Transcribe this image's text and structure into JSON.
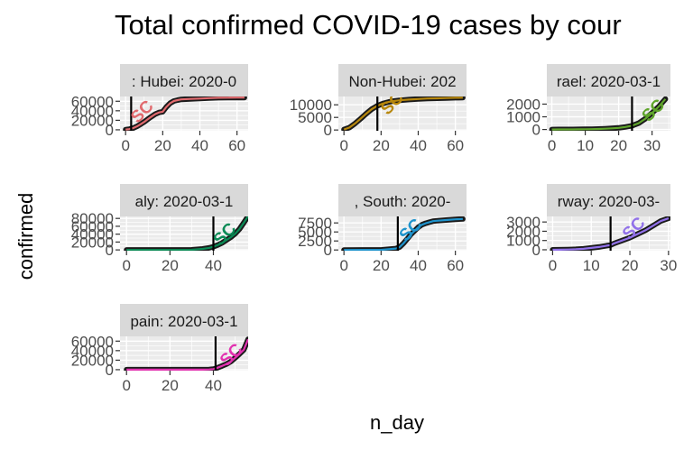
{
  "chart_data": {
    "type": "line",
    "title": "Total confirmed COVID-19 cases by cour",
    "xlabel": "n_day",
    "ylabel": "confirmed",
    "grid": true,
    "facets": [
      {
        "strip": ": Hubei: 2020-0",
        "color": "#E16A6E",
        "marker_label": "SC",
        "vline_x": 3,
        "xlim": [
          -3,
          66
        ],
        "ylim": [
          -2000,
          70000
        ],
        "x_ticks": [
          {
            "v": 0,
            "t": "0"
          },
          {
            "v": 20,
            "t": "20"
          },
          {
            "v": 40,
            "t": "40"
          },
          {
            "v": 60,
            "t": "60"
          }
        ],
        "y_ticks": [
          {
            "v": 0,
            "t": "0"
          },
          {
            "v": 20000,
            "t": "20000"
          },
          {
            "v": 40000,
            "t": "40000"
          },
          {
            "v": 60000,
            "t": "60000"
          }
        ],
        "x": [
          0,
          2,
          4,
          6,
          8,
          10,
          12,
          14,
          16,
          18,
          20,
          22,
          24,
          26,
          28,
          30,
          35,
          40,
          45,
          50,
          55,
          60,
          64
        ],
        "y": [
          400,
          1400,
          3500,
          7000,
          11500,
          16500,
          22500,
          28000,
          33000,
          36500,
          38000,
          48000,
          56000,
          60500,
          62500,
          63900,
          64800,
          65600,
          66500,
          67300,
          67600,
          67800,
          67800
        ],
        "label_at": [
          11,
          30000
        ]
      },
      {
        "strip": "Non-Hubei: 202",
        "color": "#B7870C",
        "marker_label": "SC",
        "vline_x": 18,
        "xlim": [
          -3,
          66
        ],
        "ylim": [
          -300,
          13300
        ],
        "x_ticks": [
          {
            "v": 0,
            "t": "0"
          },
          {
            "v": 20,
            "t": "20"
          },
          {
            "v": 40,
            "t": "40"
          },
          {
            "v": 60,
            "t": "60"
          }
        ],
        "y_ticks": [
          {
            "v": 0,
            "t": "0"
          },
          {
            "v": 5000,
            "t": "5000"
          },
          {
            "v": 10000,
            "t": "10000"
          }
        ],
        "x": [
          0,
          3,
          6,
          9,
          12,
          15,
          18,
          21,
          24,
          27,
          30,
          35,
          40,
          45,
          50,
          55,
          60,
          64
        ],
        "y": [
          200,
          1000,
          2600,
          4500,
          6500,
          8300,
          9600,
          10500,
          11100,
          11500,
          11800,
          12100,
          12300,
          12500,
          12600,
          12700,
          12800,
          12850
        ],
        "label_at": [
          28,
          9000
        ]
      },
      {
        "strip": "rael: 2020-03-1",
        "color": "#5FA52B",
        "marker_label": "SC",
        "vline_x": 24,
        "xlim": [
          -1.5,
          35.5
        ],
        "ylim": [
          -100,
          2600
        ],
        "x_ticks": [
          {
            "v": 0,
            "t": "0"
          },
          {
            "v": 10,
            "t": "10"
          },
          {
            "v": 20,
            "t": "20"
          },
          {
            "v": 30,
            "t": "30"
          }
        ],
        "y_ticks": [
          {
            "v": 0,
            "t": "0"
          },
          {
            "v": 1000,
            "t": "1000"
          },
          {
            "v": 2000,
            "t": "2000"
          }
        ],
        "x": [
          0,
          2,
          4,
          6,
          8,
          10,
          12,
          14,
          16,
          18,
          20,
          22,
          24,
          26,
          28,
          30,
          32,
          34
        ],
        "y": [
          2,
          4,
          7,
          10,
          15,
          20,
          30,
          40,
          60,
          90,
          130,
          200,
          300,
          500,
          850,
          1300,
          1800,
          2400
        ],
        "label_at": [
          31.5,
          1200
        ]
      },
      {
        "strip": "aly: 2020-03-1",
        "color": "#0A8A55",
        "marker_label": "SC",
        "vline_x": 40,
        "xlim": [
          -3,
          56
        ],
        "ylim": [
          -2000,
          85000
        ],
        "x_ticks": [
          {
            "v": 0,
            "t": "0"
          },
          {
            "v": 20,
            "t": "20"
          },
          {
            "v": 40,
            "t": "40"
          }
        ],
        "y_ticks": [
          {
            "v": 0,
            "t": "0"
          },
          {
            "v": 20000,
            "t": "20000"
          },
          {
            "v": 40000,
            "t": "40000"
          },
          {
            "v": 60000,
            "t": "60000"
          },
          {
            "v": 80000,
            "t": "80000"
          }
        ],
        "x": [
          0,
          5,
          10,
          15,
          20,
          25,
          30,
          35,
          38,
          40,
          42,
          44,
          46,
          48,
          50,
          52,
          54,
          56
        ],
        "y": [
          3,
          3,
          3,
          3,
          5,
          20,
          400,
          2500,
          5000,
          8000,
          12500,
          17700,
          25000,
          32000,
          41000,
          53000,
          69000,
          86000
        ],
        "label_at": [
          47,
          30000
        ]
      },
      {
        "strip": ", South: 2020-",
        "color": "#1E93CC",
        "marker_label": "SC",
        "vline_x": 29,
        "xlim": [
          -3,
          66
        ],
        "ylim": [
          -200,
          9300
        ],
        "x_ticks": [
          {
            "v": 0,
            "t": "0"
          },
          {
            "v": 20,
            "t": "20"
          },
          {
            "v": 40,
            "t": "40"
          },
          {
            "v": 60,
            "t": "60"
          }
        ],
        "y_ticks": [
          {
            "v": 0,
            "t": "0"
          },
          {
            "v": 2500,
            "t": "2500"
          },
          {
            "v": 5000,
            "t": "5000"
          },
          {
            "v": 7500,
            "t": "7500"
          }
        ],
        "x": [
          0,
          10,
          20,
          28,
          30,
          32,
          34,
          36,
          38,
          40,
          42,
          44,
          46,
          48,
          50,
          55,
          60,
          64
        ],
        "y": [
          1,
          15,
          30,
          400,
          800,
          1800,
          3000,
          4300,
          5300,
          6300,
          7000,
          7400,
          7700,
          8000,
          8100,
          8300,
          8500,
          8600
        ],
        "label_at": [
          38,
          4500
        ]
      },
      {
        "strip": "rway: 2020-03-",
        "color": "#9171E9",
        "marker_label": "SC",
        "vline_x": 15,
        "xlim": [
          -1.5,
          30.5
        ],
        "ylim": [
          -100,
          3600
        ],
        "x_ticks": [
          {
            "v": 0,
            "t": "0"
          },
          {
            "v": 10,
            "t": "10"
          },
          {
            "v": 20,
            "t": "20"
          },
          {
            "v": 30,
            "t": "30"
          }
        ],
        "y_ticks": [
          {
            "v": 0,
            "t": "0"
          },
          {
            "v": 1000,
            "t": "1000"
          },
          {
            "v": 2000,
            "t": "2000"
          },
          {
            "v": 3000,
            "t": "3000"
          }
        ],
        "x": [
          0,
          2,
          4,
          6,
          8,
          10,
          12,
          14,
          15,
          16,
          18,
          20,
          22,
          24,
          26,
          28,
          30
        ],
        "y": [
          1,
          10,
          30,
          60,
          100,
          200,
          300,
          450,
          500,
          700,
          1000,
          1300,
          1700,
          2100,
          2600,
          3100,
          3400
        ],
        "label_at": [
          22,
          1900
        ]
      },
      {
        "strip": "pain: 2020-03-1",
        "color": "#E232B0",
        "marker_label": "SC",
        "vline_x": 41,
        "xlim": [
          -3,
          56
        ],
        "ylim": [
          -2000,
          70000
        ],
        "x_ticks": [
          {
            "v": 0,
            "t": "0"
          },
          {
            "v": 20,
            "t": "20"
          },
          {
            "v": 40,
            "t": "40"
          }
        ],
        "y_ticks": [
          {
            "v": 0,
            "t": "0"
          },
          {
            "v": 20000,
            "t": "20000"
          },
          {
            "v": 40000,
            "t": "40000"
          },
          {
            "v": 60000,
            "t": "60000"
          }
        ],
        "x": [
          0,
          10,
          20,
          30,
          35,
          38,
          40,
          41,
          42,
          44,
          46,
          48,
          50,
          52,
          54,
          56
        ],
        "y": [
          1,
          2,
          2,
          2,
          100,
          500,
          1200,
          2500,
          4200,
          7800,
          11800,
          17000,
          25000,
          33000,
          42000,
          64000
        ],
        "label_at": [
          50,
          23000
        ]
      }
    ]
  }
}
